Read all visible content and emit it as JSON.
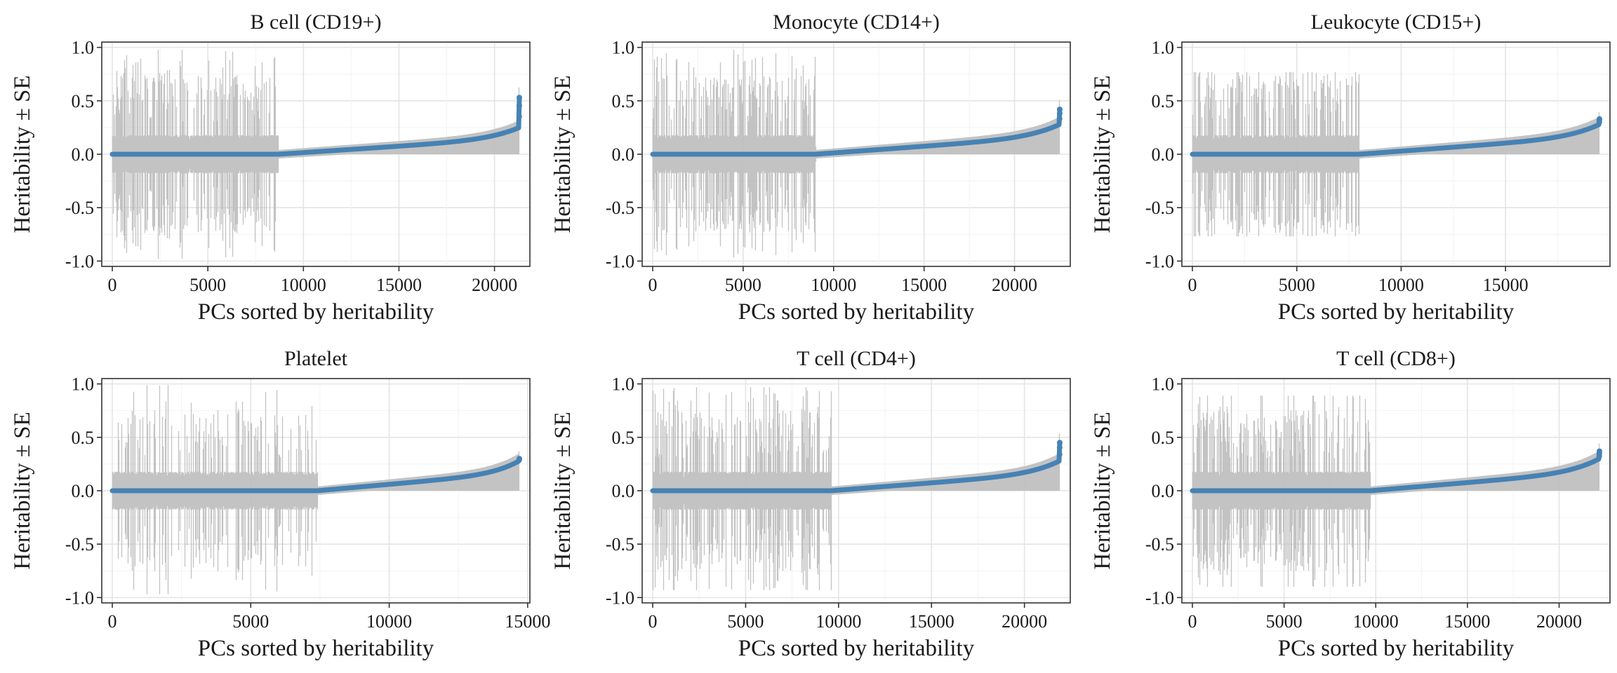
{
  "chart_data": [
    {
      "type": "scatter",
      "title": "B cell (CD19+)",
      "xlabel": "PCs sorted by heritability",
      "ylabel": "Heritability ± SE",
      "n_points": 21300,
      "xlim": [
        0,
        21300
      ],
      "ylim": [
        -1.05,
        1.05
      ],
      "x_ticks": [
        0,
        5000,
        10000,
        15000,
        20000
      ],
      "x_tick_labels": [
        "0",
        "5000",
        "10000",
        "15000",
        "20000"
      ],
      "y_ticks": [
        -1.0,
        -0.5,
        0.0,
        0.5,
        1.0
      ],
      "y_tick_labels": [
        "-1.0",
        "-0.5",
        "0.0",
        "0.5",
        "1.0"
      ],
      "zero_heritability_until": 8700,
      "heritability_at_end": 0.25,
      "max_heritability": 0.53,
      "max_error_bar": 0.98,
      "min_error_bar": -0.98,
      "grid": true,
      "series": [
        {
          "role": "error-bars",
          "color": "#bdbdbd"
        },
        {
          "role": "estimates",
          "color": "#4682b4"
        }
      ]
    },
    {
      "type": "scatter",
      "title": "Monocyte (CD14+)",
      "xlabel": "PCs sorted by heritability",
      "ylabel": "Heritability ± SE",
      "n_points": 22500,
      "xlim": [
        0,
        22500
      ],
      "ylim": [
        -1.05,
        1.05
      ],
      "x_ticks": [
        0,
        5000,
        10000,
        15000,
        20000
      ],
      "x_tick_labels": [
        "0",
        "5000",
        "10000",
        "15000",
        "20000"
      ],
      "y_ticks": [
        -1.0,
        -0.5,
        0.0,
        0.5,
        1.0
      ],
      "y_tick_labels": [
        "-1.0",
        "-0.5",
        "0.0",
        "0.5",
        "1.0"
      ],
      "zero_heritability_until": 9000,
      "heritability_at_end": 0.28,
      "max_heritability": 0.42,
      "max_error_bar": 0.98,
      "min_error_bar": -0.97,
      "grid": true,
      "series": [
        {
          "role": "error-bars",
          "color": "#bdbdbd"
        },
        {
          "role": "estimates",
          "color": "#4682b4"
        }
      ]
    },
    {
      "type": "scatter",
      "title": "Leukocyte (CD15+)",
      "xlabel": "PCs sorted by heritability",
      "ylabel": "Heritability ± SE",
      "n_points": 19500,
      "xlim": [
        0,
        19500
      ],
      "ylim": [
        -1.05,
        1.05
      ],
      "x_ticks": [
        0,
        5000,
        10000,
        15000
      ],
      "x_tick_labels": [
        "0",
        "5000",
        "10000",
        "15000"
      ],
      "y_ticks": [
        -1.0,
        -0.5,
        0.0,
        0.5,
        1.0
      ],
      "y_tick_labels": [
        "-1.0",
        "-0.5",
        "0.0",
        "0.5",
        "1.0"
      ],
      "zero_heritability_until": 8000,
      "heritability_at_end": 0.28,
      "max_heritability": 0.33,
      "max_error_bar": 0.77,
      "min_error_bar": -0.77,
      "grid": true,
      "series": [
        {
          "role": "error-bars",
          "color": "#bdbdbd"
        },
        {
          "role": "estimates",
          "color": "#4682b4"
        }
      ]
    },
    {
      "type": "scatter",
      "title": "Platelet",
      "xlabel": "PCs sorted by heritability",
      "ylabel": "Heritability ± SE",
      "n_points": 14700,
      "xlim": [
        0,
        14700
      ],
      "ylim": [
        -1.05,
        1.05
      ],
      "x_ticks": [
        0,
        5000,
        10000,
        15000
      ],
      "x_tick_labels": [
        "0",
        "5000",
        "10000",
        "15000"
      ],
      "y_ticks": [
        -1.0,
        -0.5,
        0.0,
        0.5,
        1.0
      ],
      "y_tick_labels": [
        "-1.0",
        "-0.5",
        "0.0",
        "0.5",
        "1.0"
      ],
      "zero_heritability_until": 7400,
      "heritability_at_end": 0.28,
      "max_heritability": 0.3,
      "max_error_bar": 0.99,
      "min_error_bar": -0.97,
      "grid": true,
      "series": [
        {
          "role": "error-bars",
          "color": "#bdbdbd"
        },
        {
          "role": "estimates",
          "color": "#4682b4"
        }
      ]
    },
    {
      "type": "scatter",
      "title": "T cell (CD4+)",
      "xlabel": "PCs sorted by heritability",
      "ylabel": "Heritability ± SE",
      "n_points": 21900,
      "xlim": [
        0,
        21900
      ],
      "ylim": [
        -1.05,
        1.05
      ],
      "x_ticks": [
        0,
        5000,
        10000,
        15000,
        20000
      ],
      "x_tick_labels": [
        "0",
        "5000",
        "10000",
        "15000",
        "20000"
      ],
      "y_ticks": [
        -1.0,
        -0.5,
        0.0,
        0.5,
        1.0
      ],
      "y_tick_labels": [
        "-1.0",
        "-0.5",
        "0.0",
        "0.5",
        "1.0"
      ],
      "zero_heritability_until": 9600,
      "heritability_at_end": 0.28,
      "max_heritability": 0.45,
      "max_error_bar": 0.97,
      "min_error_bar": -0.93,
      "grid": true,
      "series": [
        {
          "role": "error-bars",
          "color": "#bdbdbd"
        },
        {
          "role": "estimates",
          "color": "#4682b4"
        }
      ]
    },
    {
      "type": "scatter",
      "title": "T cell (CD8+)",
      "xlabel": "PCs sorted by heritability",
      "ylabel": "Heritability ± SE",
      "n_points": 22200,
      "xlim": [
        0,
        22200
      ],
      "ylim": [
        -1.05,
        1.05
      ],
      "x_ticks": [
        0,
        5000,
        10000,
        15000,
        20000
      ],
      "x_tick_labels": [
        "0",
        "5000",
        "10000",
        "15000",
        "20000"
      ],
      "y_ticks": [
        -1.0,
        -0.5,
        0.0,
        0.5,
        1.0
      ],
      "y_tick_labels": [
        "-1.0",
        "-0.5",
        "0.0",
        "0.5",
        "1.0"
      ],
      "zero_heritability_until": 9700,
      "heritability_at_end": 0.3,
      "max_heritability": 0.37,
      "max_error_bar": 0.89,
      "min_error_bar": -0.9,
      "grid": true,
      "series": [
        {
          "role": "error-bars",
          "color": "#bdbdbd"
        },
        {
          "role": "estimates",
          "color": "#4682b4"
        }
      ]
    }
  ]
}
